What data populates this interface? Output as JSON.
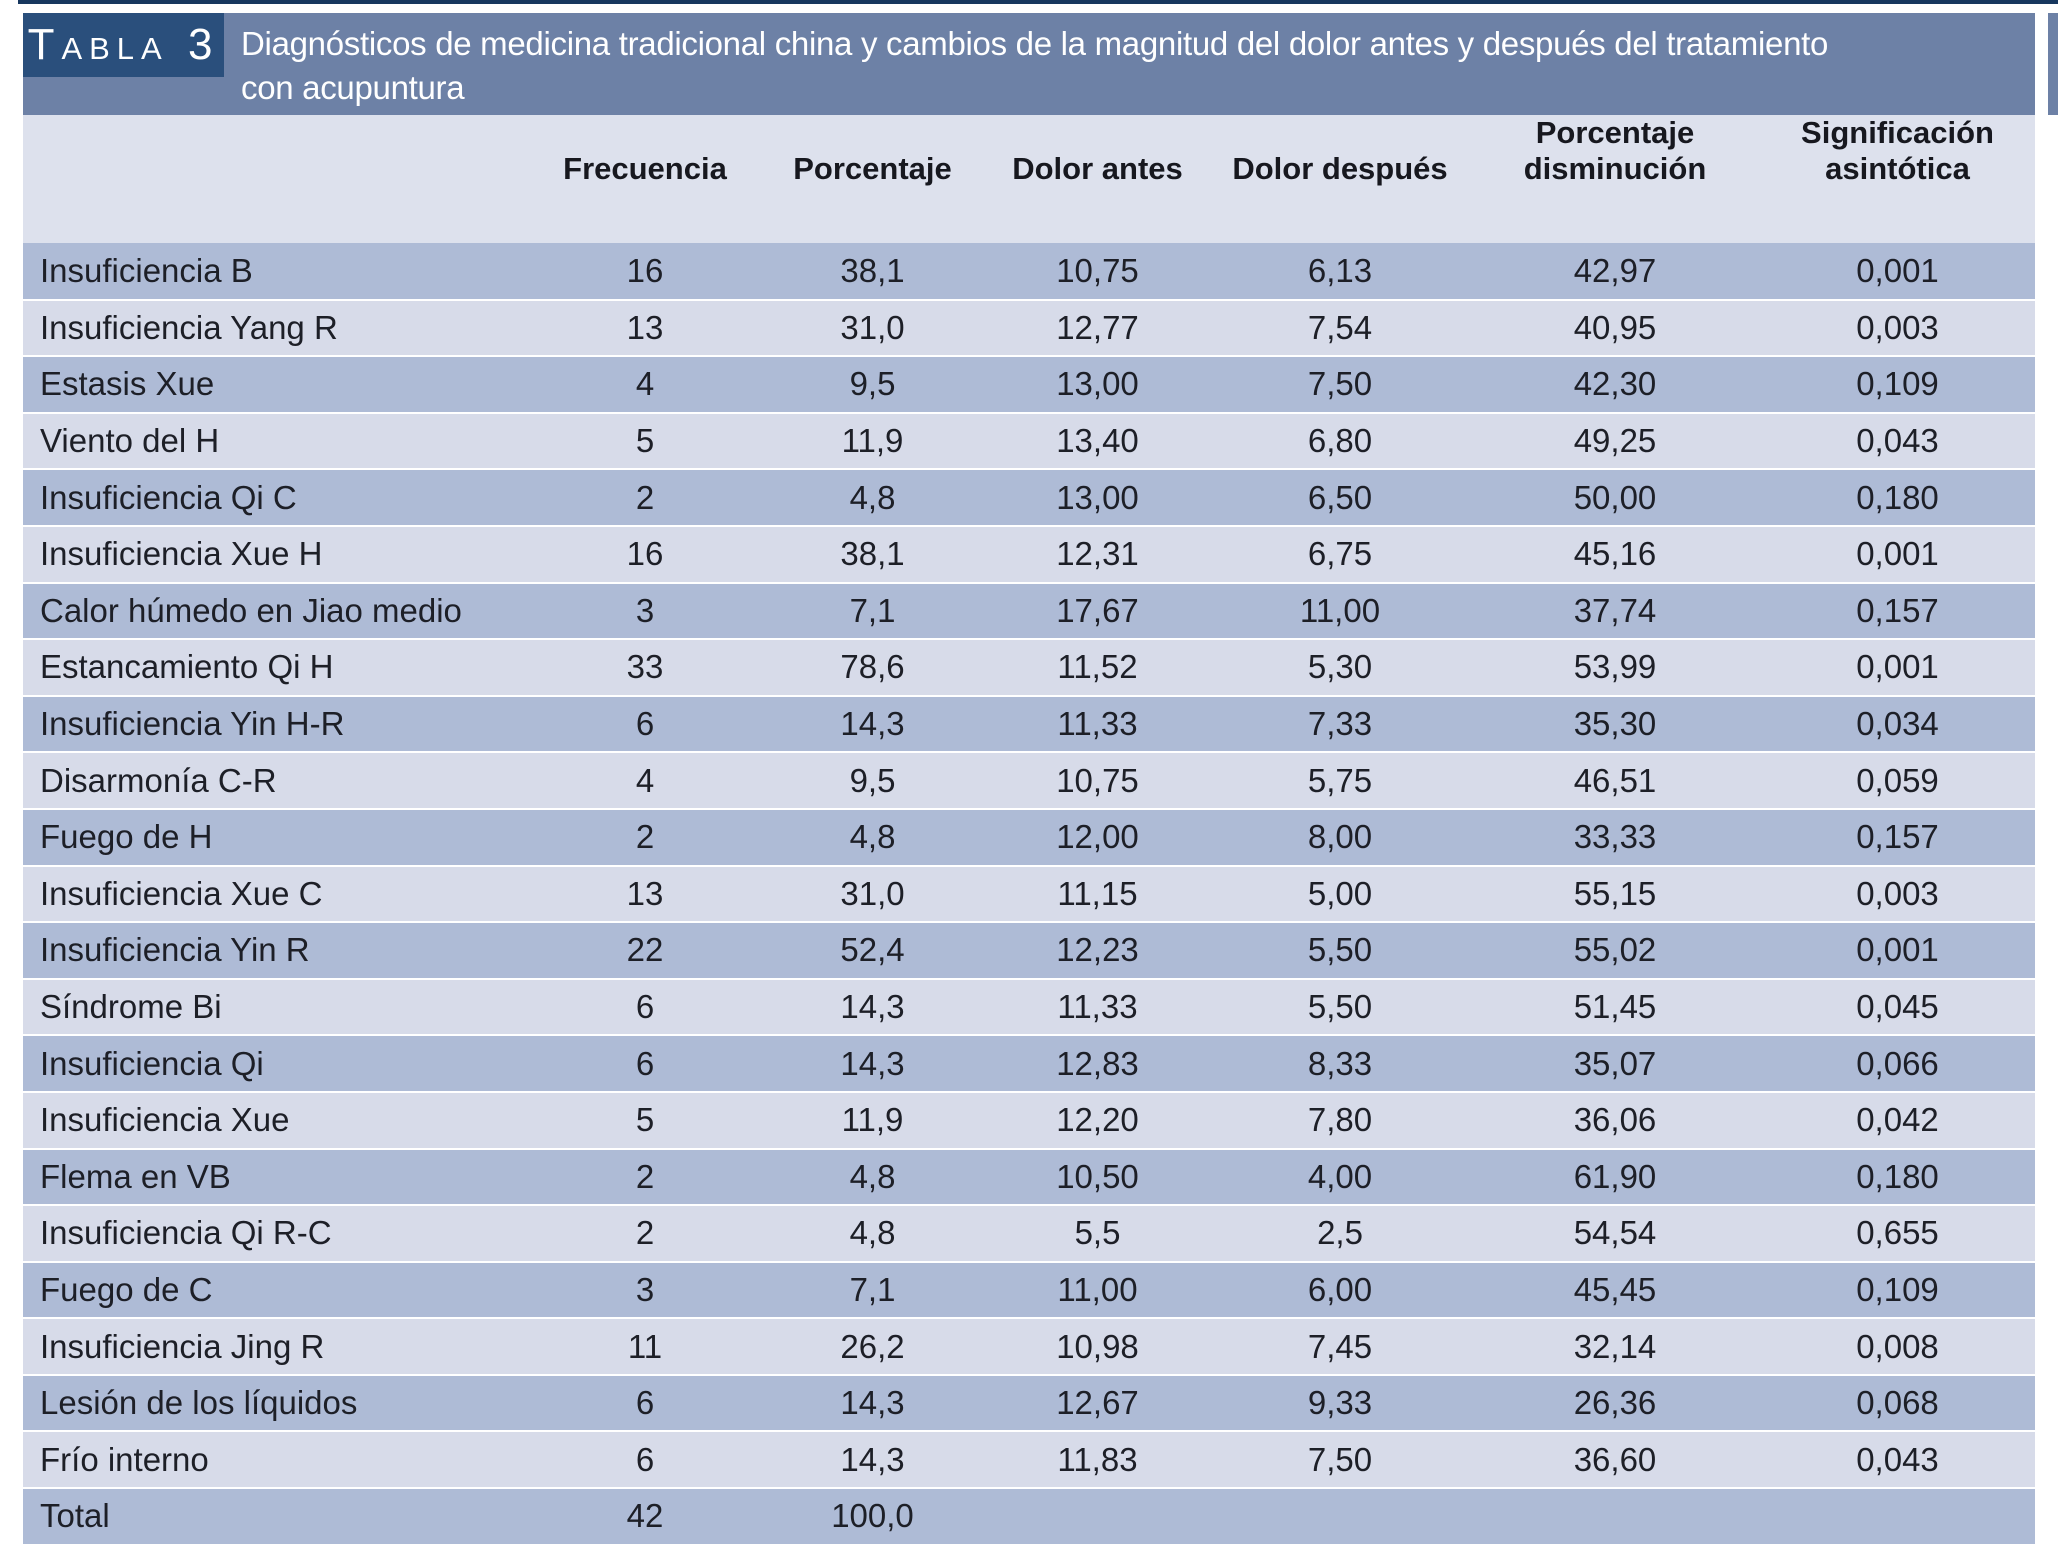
{
  "page": {
    "tag_label": "Tabla 3",
    "title_line1": "Diagnósticos de medicina tradicional china y cambios de la magnitud del dolor antes y después del tratamiento",
    "title_line2": "con acupuntura"
  },
  "table": {
    "columns": [
      "",
      "Frecuencia",
      "Porcentaje",
      "Dolor antes",
      "Dolor después",
      "Porcentaje disminución",
      "Significación asintótica"
    ],
    "rows": [
      [
        "Insuficiencia B",
        "16",
        "38,1",
        "10,75",
        "6,13",
        "42,97",
        "0,001"
      ],
      [
        "Insuficiencia Yang R",
        "13",
        "31,0",
        "12,77",
        "7,54",
        "40,95",
        "0,003"
      ],
      [
        "Estasis Xue",
        "4",
        "9,5",
        "13,00",
        "7,50",
        "42,30",
        "0,109"
      ],
      [
        "Viento del H",
        "5",
        "11,9",
        "13,40",
        "6,80",
        "49,25",
        "0,043"
      ],
      [
        "Insuficiencia Qi C",
        "2",
        "4,8",
        "13,00",
        "6,50",
        "50,00",
        "0,180"
      ],
      [
        "Insuficiencia Xue H",
        "16",
        "38,1",
        "12,31",
        "6,75",
        "45,16",
        "0,001"
      ],
      [
        "Calor húmedo en Jiao medio",
        "3",
        "7,1",
        "17,67",
        "11,00",
        "37,74",
        "0,157"
      ],
      [
        "Estancamiento Qi H",
        "33",
        "78,6",
        "11,52",
        "5,30",
        "53,99",
        "0,001"
      ],
      [
        "Insuficiencia Yin H-R",
        "6",
        "14,3",
        "11,33",
        "7,33",
        "35,30",
        "0,034"
      ],
      [
        "Disarmonía C-R",
        "4",
        "9,5",
        "10,75",
        "5,75",
        "46,51",
        "0,059"
      ],
      [
        "Fuego de H",
        "2",
        "4,8",
        "12,00",
        "8,00",
        "33,33",
        "0,157"
      ],
      [
        "Insuficiencia Xue C",
        "13",
        "31,0",
        "11,15",
        "5,00",
        "55,15",
        "0,003"
      ],
      [
        "Insuficiencia Yin R",
        "22",
        "52,4",
        "12,23",
        "5,50",
        "55,02",
        "0,001"
      ],
      [
        "Síndrome Bi",
        "6",
        "14,3",
        "11,33",
        "5,50",
        "51,45",
        "0,045"
      ],
      [
        "Insuficiencia Qi",
        "6",
        "14,3",
        "12,83",
        "8,33",
        "35,07",
        "0,066"
      ],
      [
        "Insuficiencia Xue",
        "5",
        "11,9",
        "12,20",
        "7,80",
        "36,06",
        "0,042"
      ],
      [
        "Flema en VB",
        "2",
        "4,8",
        "10,50",
        "4,00",
        "61,90",
        "0,180"
      ],
      [
        "Insuficiencia Qi R-C",
        "2",
        "4,8",
        "5,5",
        "2,5",
        "54,54",
        "0,655"
      ],
      [
        "Fuego de C",
        "3",
        "7,1",
        "11,00",
        "6,00",
        "45,45",
        "0,109"
      ],
      [
        "Insuficiencia Jing R",
        "11",
        "26,2",
        "10,98",
        "7,45",
        "32,14",
        "0,008"
      ],
      [
        "Lesión de los líquidos",
        "6",
        "14,3",
        "12,67",
        "9,33",
        "26,36",
        "0,068"
      ],
      [
        "Frío interno",
        "6",
        "14,3",
        "11,83",
        "7,50",
        "36,60",
        "0,043"
      ],
      [
        "Total",
        "42",
        "100,0",
        "",
        "",
        "",
        ""
      ]
    ]
  },
  "colors": {
    "tag_box": "#2a4f7c",
    "title_band": "#6d81a6",
    "header_row_bg": "#dde1ed",
    "row_dark": "#aebbd6",
    "row_light": "#d7dbe9",
    "top_rule": "#17375e",
    "text": "#1d1f27",
    "title_text": "#ffffff"
  }
}
